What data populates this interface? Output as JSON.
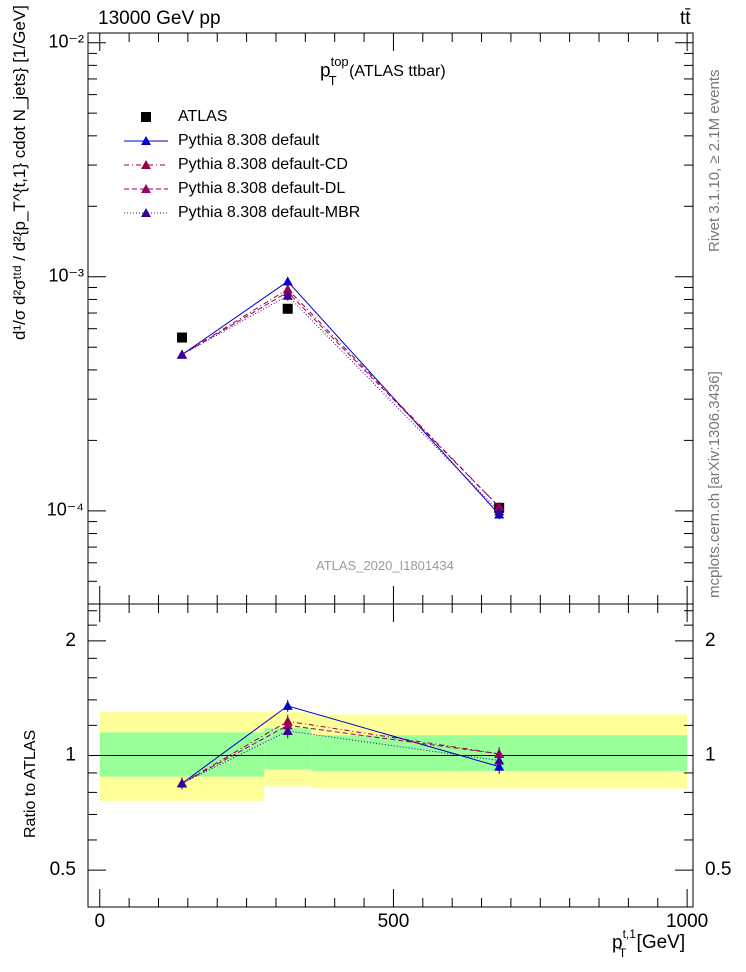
{
  "header": {
    "energy_label": "13000 GeV pp",
    "process_label": "tt̄"
  },
  "main_title": {
    "base": "p",
    "sup": "top",
    "sub": "T",
    "suffix": "(ATLAS ttbar)"
  },
  "side_labels": {
    "rivet": "Rivet 3.1.10, ≥ 2.1M events",
    "mcplots": "mcplots.cern.ch [arXiv:1306.3436]"
  },
  "watermark": "ATLAS_2020_I1801434",
  "ylabel_main": "d¹/σ d²σᵗᵗᵈ / d²{p_T^{t,1} cdot N_jets} [1/GeV]",
  "ylabel_ratio": "Ratio to ATLAS",
  "xlabel": {
    "base": "p",
    "sup": "t,1",
    "sub": "T",
    "unit": "[GeV]"
  },
  "colors": {
    "data": "#000000",
    "default": "#0000cc",
    "cd": "#990044",
    "dl": "#990066",
    "mbr": "#330099",
    "band_inner": "#99ff99",
    "band_outer": "#ffff99"
  },
  "chart_data": [
    {
      "type": "line",
      "panel": "main",
      "yscale": "log",
      "xlim": [
        -20,
        1010
      ],
      "ylim": [
        4e-05,
        0.011
      ],
      "ytick_labels": [
        "10⁻⁴",
        "10⁻³",
        "10⁻²"
      ],
      "ytick_values": [
        0.0001,
        0.001,
        0.01
      ],
      "legend_position": "top-left",
      "series": [
        {
          "name": "ATLAS",
          "key": "data",
          "x": [
            140,
            320,
            680
          ],
          "y": [
            0.00055,
            0.00073,
            0.000103
          ],
          "yerr": [
            6e-06,
            8e-06,
            2e-06
          ]
        },
        {
          "name": "Pythia 8.308 default",
          "key": "default",
          "x": [
            140,
            320,
            680
          ],
          "y": [
            0.000465,
            0.000955,
            9.65e-05
          ],
          "yerr": [
            1.2e-05,
            4.5e-05,
            4.5e-06
          ]
        },
        {
          "name": "Pythia 8.308 default-CD",
          "key": "cd",
          "x": [
            140,
            320,
            680
          ],
          "y": [
            0.000465,
            0.000885,
            0.000104
          ],
          "yerr": [
            1.2e-05,
            4e-05,
            4.5e-06
          ]
        },
        {
          "name": "Pythia 8.308 default-DL",
          "key": "dl",
          "x": [
            140,
            320,
            680
          ],
          "y": [
            0.000465,
            0.00086,
            0.000104
          ],
          "yerr": [
            1.2e-05,
            4e-05,
            4.5e-06
          ]
        },
        {
          "name": "Pythia 8.308 default-MBR",
          "key": "mbr",
          "x": [
            140,
            320,
            680
          ],
          "y": [
            0.000465,
            0.00083,
            9.95e-05
          ],
          "yerr": [
            1.2e-05,
            4e-05,
            4.5e-06
          ]
        }
      ]
    },
    {
      "type": "line",
      "panel": "ratio",
      "yscale": "log",
      "xlim": [
        -20,
        1010
      ],
      "ylim": [
        0.4,
        2.5
      ],
      "xtick_labels": [
        "0",
        "500",
        "1000"
      ],
      "xtick_values": [
        0,
        500,
        1000
      ],
      "ytick_labels": [
        "0.5",
        "1",
        "2"
      ],
      "ytick_values": [
        0.5,
        1,
        2
      ],
      "bands": [
        {
          "x0": 0,
          "x1": 280,
          "inner": [
            0.88,
            1.15
          ],
          "outer": [
            0.76,
            1.3
          ]
        },
        {
          "x0": 280,
          "x1": 360,
          "inner": [
            0.92,
            1.18
          ],
          "outer": [
            0.83,
            1.3
          ]
        },
        {
          "x0": 360,
          "x1": 1000,
          "inner": [
            0.91,
            1.13
          ],
          "outer": [
            0.82,
            1.28
          ]
        }
      ],
      "series": [
        {
          "name": "Pythia 8.308 default",
          "key": "default",
          "x": [
            140,
            320,
            680
          ],
          "y": [
            0.845,
            1.35,
            0.935
          ],
          "yerr": [
            0.03,
            0.05,
            0.04
          ]
        },
        {
          "name": "Pythia 8.308 default-CD",
          "key": "cd",
          "x": [
            140,
            320,
            680
          ],
          "y": [
            0.845,
            1.23,
            1.01
          ],
          "yerr": [
            0.03,
            0.05,
            0.04
          ]
        },
        {
          "name": "Pythia 8.308 default-DL",
          "key": "dl",
          "x": [
            140,
            320,
            680
          ],
          "y": [
            0.845,
            1.2,
            1.01
          ],
          "yerr": [
            0.03,
            0.05,
            0.04
          ]
        },
        {
          "name": "Pythia 8.308 default-MBR",
          "key": "mbr",
          "x": [
            140,
            320,
            680
          ],
          "y": [
            0.845,
            1.16,
            0.97
          ],
          "yerr": [
            0.03,
            0.05,
            0.04
          ]
        }
      ]
    }
  ]
}
